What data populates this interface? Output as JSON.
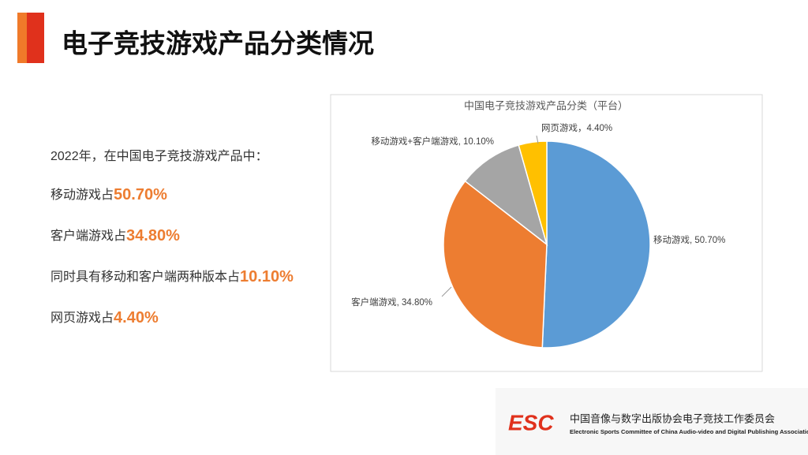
{
  "slide": {
    "title": "电子竞技游戏产品分类情况",
    "intro": "2022年，在中国电子竞技游戏产品中：",
    "lines": [
      {
        "text": "移动游戏占",
        "highlight": "50.70%"
      },
      {
        "text": "客户端游戏占",
        "highlight": "34.80%"
      },
      {
        "text": "同时具有移动和客户端两种版本占",
        "highlight": "10.10%"
      },
      {
        "text": "网页游戏占",
        "highlight": "4.40%"
      }
    ],
    "logo": "ESC",
    "org_cn": "中国音像与数字出版协会电子竞技工作委员会",
    "org_en": "Electronic Sports Committee of China Audio-video and Digital Publishing Association"
  },
  "chart_data": {
    "type": "pie",
    "title": "中国电子竞技游戏产品分类（平台）",
    "categories": [
      "移动游戏",
      "客户端游戏",
      "移动游戏+客户端游戏",
      "网页游戏"
    ],
    "values": [
      50.7,
      34.8,
      10.1,
      4.4
    ],
    "value_labels": [
      "移动游戏, 50.70%",
      "客户端游戏, 34.80%",
      "移动游戏+客户端游戏, 10.10%",
      "网页游戏，4.40%"
    ],
    "colors": [
      "#5b9bd5",
      "#ed7d31",
      "#a5a5a5",
      "#ffc000"
    ]
  }
}
